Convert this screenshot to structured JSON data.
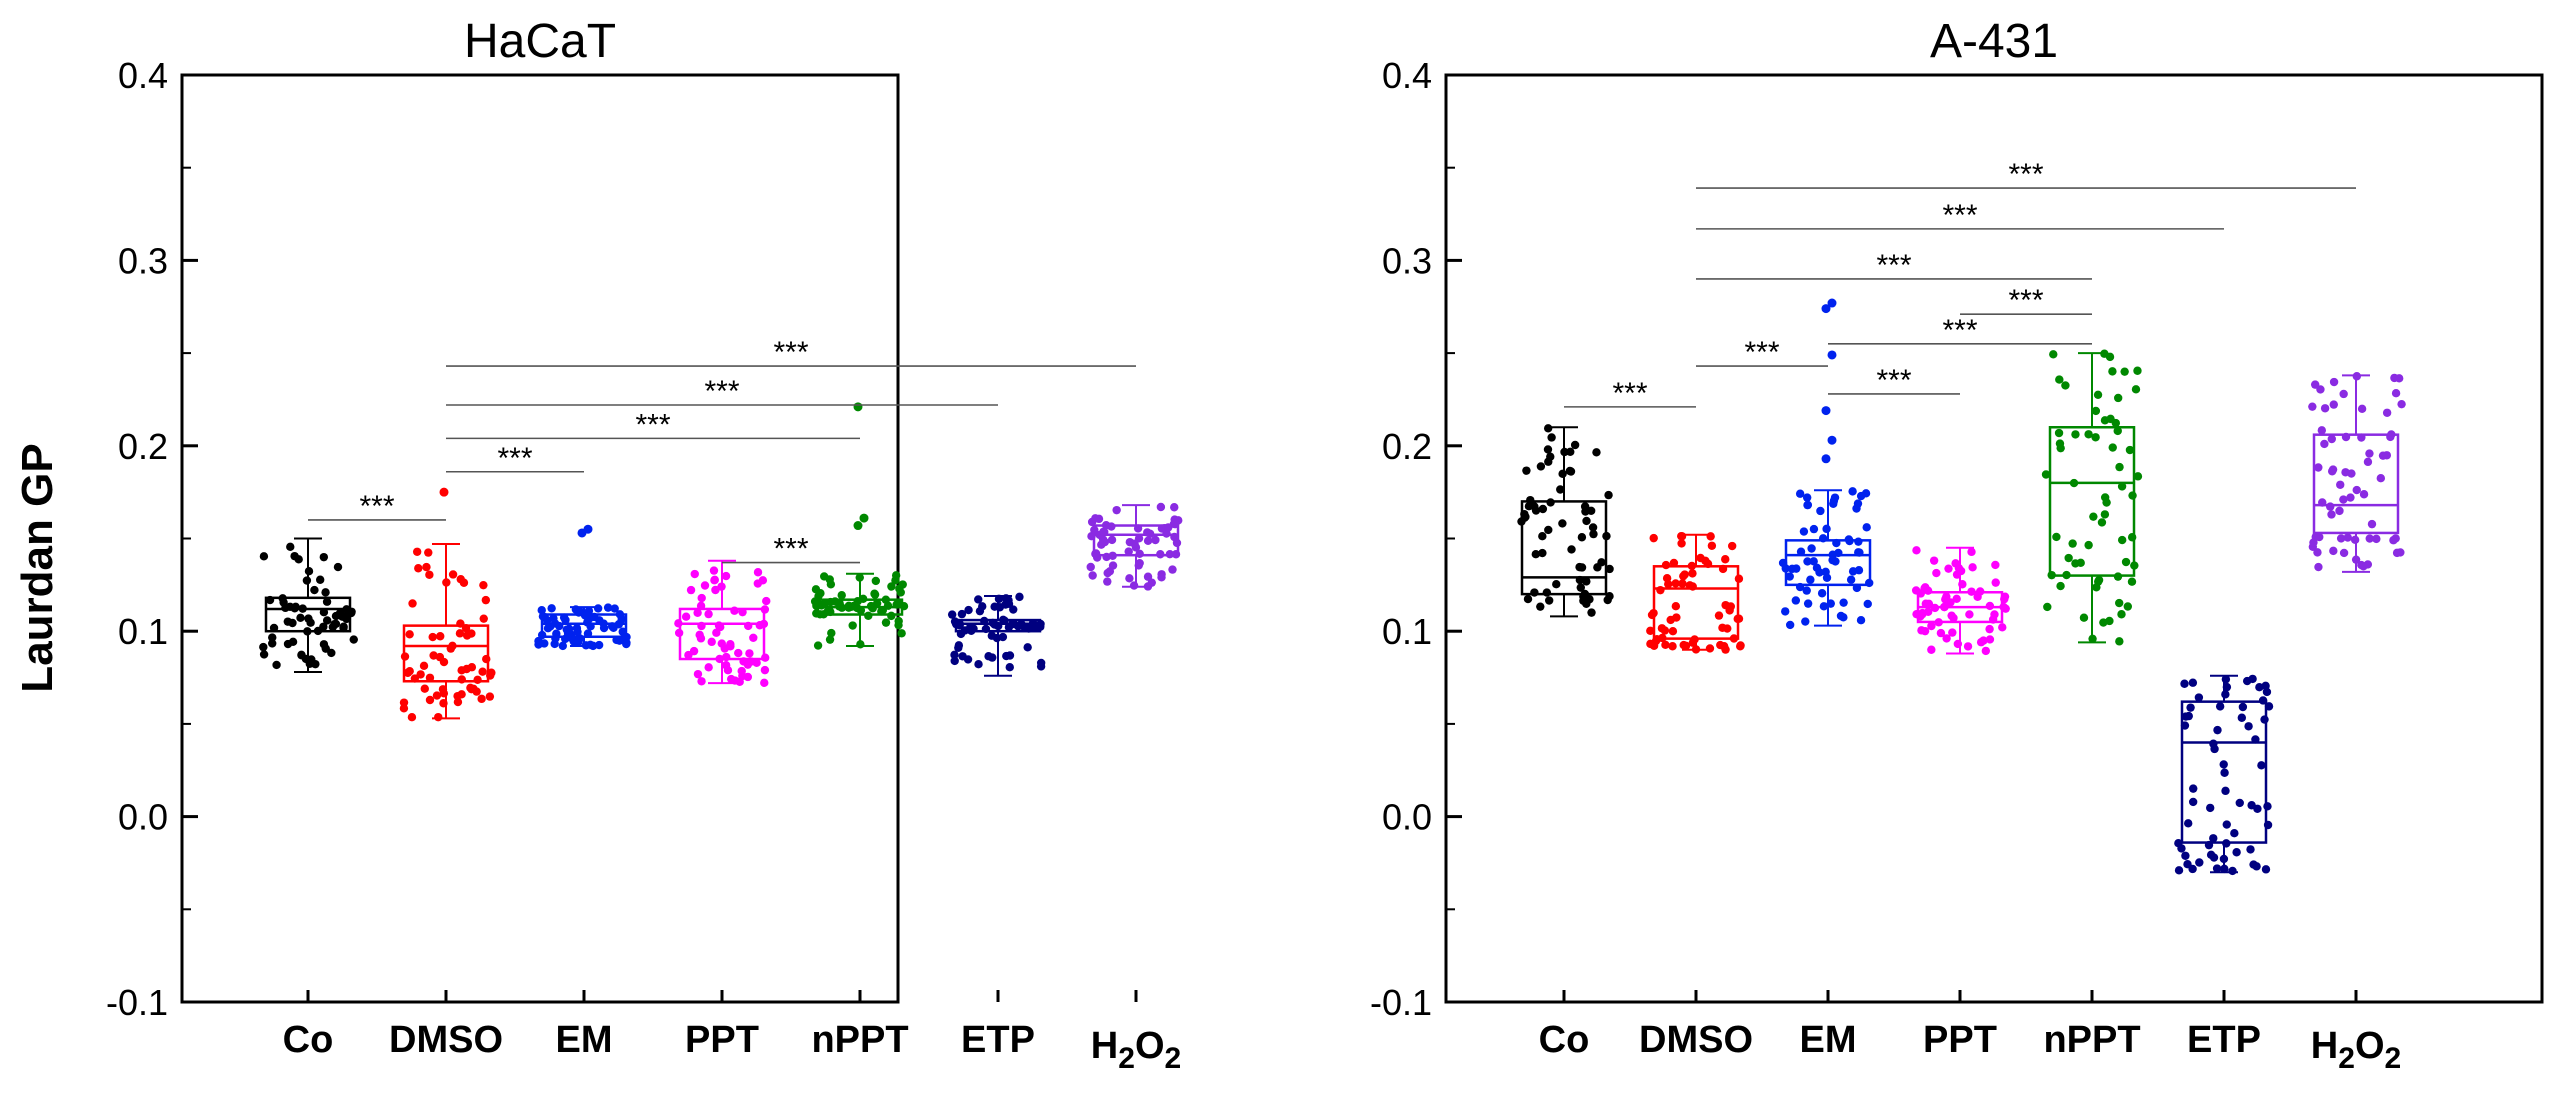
{
  "figure": {
    "ylabel": "Laurdan GP",
    "ylim": [
      -0.1,
      0.4
    ],
    "yticks": [
      "-0.1",
      "0.0",
      "0.1",
      "0.2",
      "0.3",
      "0.4"
    ],
    "categories": [
      "Co",
      "DMSO",
      "EM",
      "PPT",
      "nPPT",
      "ETP",
      "H2O2"
    ]
  },
  "colors": {
    "Co": "#000000",
    "DMSO": "#ff0000",
    "EM": "#0022ee",
    "PPT": "#ff00ff",
    "nPPT": "#008800",
    "ETP": "#000080",
    "H2O2": "#8a2be2"
  },
  "chart_data": [
    {
      "type": "box",
      "title": "HaCaT",
      "ylabel": "Laurdan GP",
      "ylim": [
        -0.1,
        0.4
      ],
      "categories": [
        "Co",
        "DMSO",
        "EM",
        "PPT",
        "nPPT",
        "ETP",
        "H2O2"
      ],
      "boxes": [
        {
          "name": "Co",
          "whisker_low": 0.078,
          "q1": 0.1,
          "median": 0.112,
          "q3": 0.118,
          "whisker_high": 0.15
        },
        {
          "name": "DMSO",
          "whisker_low": 0.053,
          "q1": 0.073,
          "median": 0.092,
          "q3": 0.103,
          "whisker_high": 0.147
        },
        {
          "name": "EM",
          "whisker_low": 0.092,
          "q1": 0.097,
          "median": 0.104,
          "q3": 0.109,
          "whisker_high": 0.113
        },
        {
          "name": "PPT",
          "whisker_low": 0.072,
          "q1": 0.085,
          "median": 0.104,
          "q3": 0.112,
          "whisker_high": 0.138
        },
        {
          "name": "nPPT",
          "whisker_low": 0.092,
          "q1": 0.109,
          "median": 0.113,
          "q3": 0.117,
          "whisker_high": 0.131
        },
        {
          "name": "ETP",
          "whisker_low": 0.076,
          "q1": 0.1,
          "median": 0.104,
          "q3": 0.106,
          "whisker_high": 0.119
        },
        {
          "name": "H2O2",
          "whisker_low": 0.124,
          "q1": 0.141,
          "median": 0.152,
          "q3": 0.157,
          "whisker_high": 0.168
        }
      ],
      "outliers": [
        {
          "name": "DMSO",
          "values": [
            0.175
          ]
        },
        {
          "name": "EM",
          "values": [
            0.153,
            0.155
          ]
        },
        {
          "name": "nPPT",
          "values": [
            0.157,
            0.161,
            0.221
          ]
        }
      ],
      "significance": [
        {
          "from": "Co",
          "to": "DMSO",
          "y": 0.16,
          "label": "***"
        },
        {
          "from": "DMSO",
          "to": "EM",
          "y": 0.186,
          "label": "***"
        },
        {
          "from": "DMSO",
          "to": "nPPT",
          "y": 0.204,
          "label": "***"
        },
        {
          "from": "DMSO",
          "to": "ETP",
          "y": 0.222,
          "label": "***"
        },
        {
          "from": "DMSO",
          "to": "H2O2",
          "y": 0.243,
          "label": "***"
        },
        {
          "from": "PPT",
          "to": "nPPT",
          "y": 0.137,
          "label": "***"
        }
      ]
    },
    {
      "type": "box",
      "title": "A-431",
      "ylabel": "Laurdan GP",
      "ylim": [
        -0.1,
        0.4
      ],
      "categories": [
        "Co",
        "DMSO",
        "EM",
        "PPT",
        "nPPT",
        "ETP",
        "H2O2"
      ],
      "boxes": [
        {
          "name": "Co",
          "whisker_low": 0.108,
          "q1": 0.12,
          "median": 0.129,
          "q3": 0.17,
          "whisker_high": 0.21
        },
        {
          "name": "DMSO",
          "whisker_low": 0.09,
          "q1": 0.096,
          "median": 0.123,
          "q3": 0.135,
          "whisker_high": 0.152
        },
        {
          "name": "EM",
          "whisker_low": 0.103,
          "q1": 0.125,
          "median": 0.141,
          "q3": 0.149,
          "whisker_high": 0.176
        },
        {
          "name": "PPT",
          "whisker_low": 0.088,
          "q1": 0.105,
          "median": 0.113,
          "q3": 0.121,
          "whisker_high": 0.145
        },
        {
          "name": "nPPT",
          "whisker_low": 0.094,
          "q1": 0.13,
          "median": 0.18,
          "q3": 0.21,
          "whisker_high": 0.25
        },
        {
          "name": "ETP",
          "whisker_low": -0.03,
          "q1": -0.014,
          "median": 0.04,
          "q3": 0.062,
          "whisker_high": 0.076
        },
        {
          "name": "H2O2",
          "whisker_low": 0.132,
          "q1": 0.153,
          "median": 0.168,
          "q3": 0.206,
          "whisker_high": 0.238
        }
      ],
      "outliers": [
        {
          "name": "EM",
          "values": [
            0.193,
            0.203,
            0.219,
            0.249,
            0.274,
            0.277
          ]
        }
      ],
      "significance": [
        {
          "from": "Co",
          "to": "DMSO",
          "y": 0.221,
          "label": "***"
        },
        {
          "from": "DMSO",
          "to": "EM",
          "y": 0.243,
          "label": "***"
        },
        {
          "from": "EM",
          "to": "PPT",
          "y": 0.228,
          "label": "***"
        },
        {
          "from": "DMSO",
          "to": "nPPT",
          "y": 0.29,
          "label": "***"
        },
        {
          "from": "DMSO",
          "to": "ETP",
          "y": 0.317,
          "label": "***"
        },
        {
          "from": "DMSO",
          "to": "H2O2",
          "y": 0.339,
          "label": "***"
        },
        {
          "from": "PPT",
          "to": "nPPT",
          "y": 0.271,
          "label": "***"
        },
        {
          "from": "EM",
          "to": "nPPT",
          "y": 0.255,
          "label": "***"
        }
      ]
    }
  ]
}
